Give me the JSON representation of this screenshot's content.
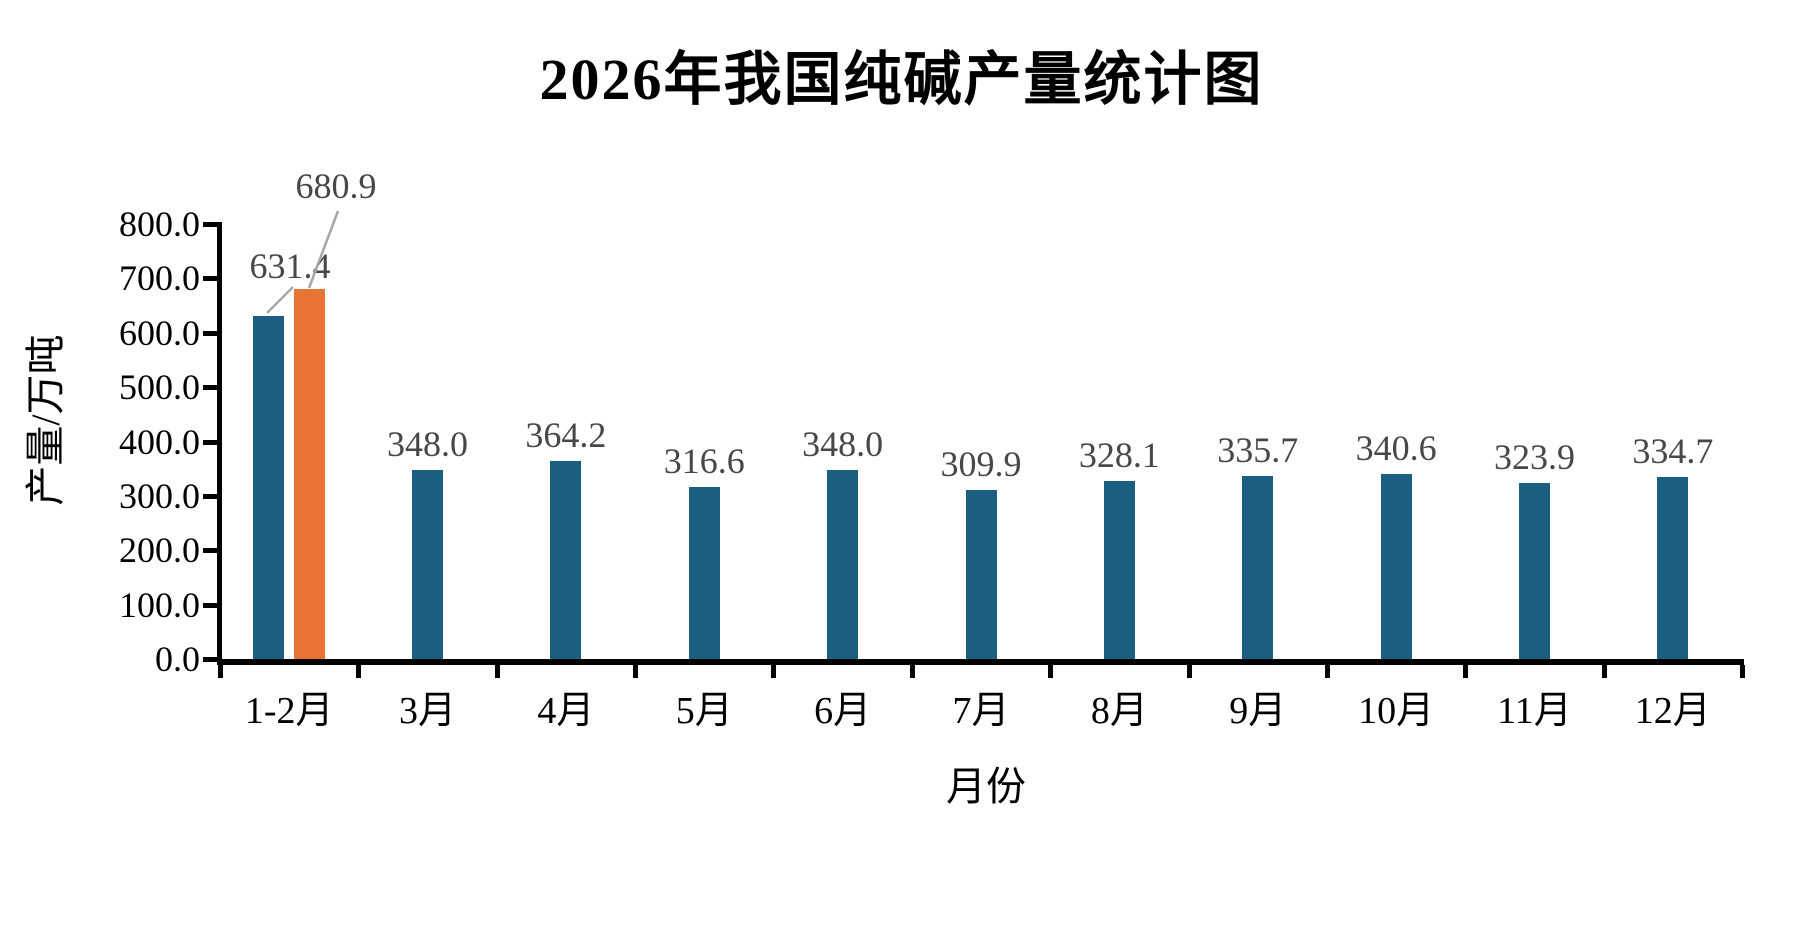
{
  "chart_data": {
    "type": "bar",
    "title": "2026年我国纯碱产量统计图",
    "xlabel": "月份",
    "ylabel": "产量/万吨",
    "categories": [
      "1-2月",
      "3月",
      "4月",
      "5月",
      "6月",
      "7月",
      "8月",
      "9月",
      "10月",
      "11月",
      "12月"
    ],
    "series": [
      {
        "name": "teal-series",
        "color": "#1A5F80",
        "values": [
          631.4,
          348.0,
          364.2,
          316.6,
          348.0,
          309.9,
          328.1,
          335.7,
          340.6,
          323.9,
          334.7
        ],
        "labels": [
          "631.4",
          "348.0",
          "364.2",
          "316.6",
          "348.0",
          "309.9",
          "328.1",
          "335.7",
          "340.6",
          "323.9",
          "334.7"
        ]
      },
      {
        "name": "orange-series",
        "color": "#E77434",
        "values": [
          680.9,
          null,
          null,
          null,
          null,
          null,
          null,
          null,
          null,
          null,
          null
        ],
        "labels": [
          "680.9",
          null,
          null,
          null,
          null,
          null,
          null,
          null,
          null,
          null,
          null
        ]
      }
    ],
    "ylim": [
      0,
      800
    ],
    "ytick_step": 100,
    "ytick_labels": [
      "0.0",
      "100.0",
      "200.0",
      "300.0",
      "400.0",
      "500.0",
      "600.0",
      "700.0",
      "800.0"
    ],
    "grid": false,
    "legend_position": "none",
    "data_labels_shown": true,
    "annotations": [
      {
        "text": "631.4",
        "target": "teal bar 1-2月",
        "leader_line": true
      },
      {
        "text": "680.9",
        "target": "orange bar 1-2月",
        "leader_line": true
      }
    ]
  },
  "colors": {
    "bar_teal": "#1A5F80",
    "bar_orange": "#E77434",
    "axis": "#000000",
    "data_label_text": "#474747",
    "leader_line": "#A6A6A6",
    "background": "#FFFFFF"
  }
}
